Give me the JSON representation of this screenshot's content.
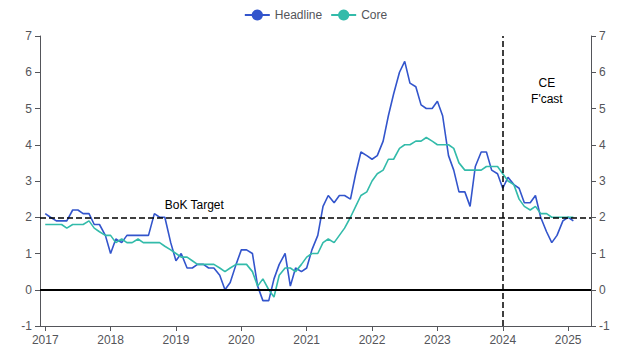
{
  "chart_data": {
    "type": "line",
    "x": [
      2017.0,
      2017.08,
      2017.17,
      2017.25,
      2017.33,
      2017.42,
      2017.5,
      2017.58,
      2017.67,
      2017.75,
      2017.83,
      2017.92,
      2018.0,
      2018.08,
      2018.17,
      2018.25,
      2018.33,
      2018.42,
      2018.5,
      2018.58,
      2018.67,
      2018.75,
      2018.83,
      2018.92,
      2019.0,
      2019.08,
      2019.17,
      2019.25,
      2019.33,
      2019.42,
      2019.5,
      2019.58,
      2019.67,
      2019.75,
      2019.83,
      2019.92,
      2020.0,
      2020.08,
      2020.17,
      2020.25,
      2020.33,
      2020.42,
      2020.5,
      2020.58,
      2020.67,
      2020.75,
      2020.83,
      2020.92,
      2021.0,
      2021.08,
      2021.17,
      2021.25,
      2021.33,
      2021.42,
      2021.5,
      2021.58,
      2021.67,
      2021.75,
      2021.83,
      2021.92,
      2022.0,
      2022.08,
      2022.17,
      2022.25,
      2022.33,
      2022.42,
      2022.5,
      2022.58,
      2022.67,
      2022.75,
      2022.83,
      2022.92,
      2023.0,
      2023.08,
      2023.17,
      2023.25,
      2023.33,
      2023.42,
      2023.5,
      2023.58,
      2023.67,
      2023.75,
      2023.83,
      2023.92,
      2024.0,
      2024.08,
      2024.17,
      2024.25,
      2024.33,
      2024.42,
      2024.5,
      2024.58,
      2024.67,
      2024.75,
      2024.83,
      2024.92,
      2025.0,
      2025.08
    ],
    "series": [
      {
        "name": "Headline",
        "color": "#3355cc",
        "values": [
          2.1,
          2.0,
          1.9,
          1.9,
          1.9,
          2.2,
          2.2,
          2.1,
          2.1,
          1.8,
          1.8,
          1.5,
          1.0,
          1.4,
          1.3,
          1.5,
          1.5,
          1.5,
          1.5,
          1.5,
          2.1,
          2.0,
          2.0,
          1.3,
          0.8,
          1.0,
          0.6,
          0.6,
          0.7,
          0.7,
          0.6,
          0.6,
          0.4,
          0.0,
          0.2,
          0.7,
          1.1,
          1.1,
          1.0,
          0.1,
          -0.3,
          -0.3,
          0.3,
          0.7,
          1.0,
          0.1,
          0.6,
          0.5,
          0.6,
          1.1,
          1.5,
          2.3,
          2.6,
          2.4,
          2.6,
          2.6,
          2.5,
          3.2,
          3.8,
          3.7,
          3.6,
          3.7,
          4.1,
          4.8,
          5.4,
          6.0,
          6.3,
          5.7,
          5.6,
          5.1,
          5.0,
          5.0,
          5.2,
          4.8,
          3.7,
          3.3,
          2.7,
          2.7,
          2.3,
          3.4,
          3.8,
          3.8,
          3.3,
          3.2,
          2.8,
          3.1,
          2.9,
          2.8,
          2.4,
          2.4,
          2.6,
          2.0,
          1.6,
          1.3,
          1.5,
          1.9,
          2.0,
          1.9
        ]
      },
      {
        "name": "Core",
        "color": "#33bbaa",
        "values": [
          1.8,
          1.8,
          1.8,
          1.8,
          1.7,
          1.8,
          1.8,
          1.8,
          1.9,
          1.7,
          1.6,
          1.5,
          1.5,
          1.3,
          1.4,
          1.3,
          1.3,
          1.4,
          1.3,
          1.3,
          1.3,
          1.3,
          1.2,
          1.1,
          1.0,
          0.9,
          0.9,
          0.8,
          0.7,
          0.7,
          0.7,
          0.7,
          0.6,
          0.5,
          0.6,
          0.7,
          0.7,
          0.7,
          0.5,
          0.1,
          0.3,
          0.0,
          -0.2,
          0.4,
          0.6,
          0.6,
          0.5,
          0.7,
          0.9,
          1.0,
          1.0,
          1.3,
          1.4,
          1.3,
          1.5,
          1.7,
          2.0,
          2.3,
          2.6,
          2.7,
          3.0,
          3.2,
          3.3,
          3.6,
          3.6,
          3.9,
          4.0,
          4.0,
          4.1,
          4.1,
          4.2,
          4.1,
          4.0,
          4.0,
          4.0,
          3.9,
          3.5,
          3.3,
          3.3,
          3.3,
          3.3,
          3.4,
          3.4,
          3.4,
          3.2,
          3.0,
          2.9,
          2.5,
          2.3,
          2.2,
          2.3,
          2.1,
          2.1,
          2.0,
          2.0,
          2.0,
          2.0,
          2.0
        ]
      }
    ],
    "xlim": [
      2016.92,
      2025.35
    ],
    "xticks": [
      2017,
      2018,
      2019,
      2020,
      2021,
      2022,
      2023,
      2024,
      2025
    ],
    "ylim": [
      -1,
      7
    ],
    "yticks": [
      -1,
      0,
      1,
      2,
      3,
      4,
      5,
      6,
      7
    ],
    "y2lim": [
      -1,
      7
    ],
    "y2ticks": [
      -1,
      0,
      1,
      2,
      3,
      4,
      5,
      6,
      7
    ],
    "grid": false,
    "legend": "top",
    "reference_lines": [
      {
        "axis": "y",
        "value": 2.0,
        "line_style": "dashed",
        "color": "black",
        "label": "BoK Target"
      },
      {
        "axis": "y",
        "value": 0.0,
        "line_style": "solid",
        "color": "black"
      },
      {
        "axis": "x",
        "value": 2024.0,
        "line_style": "dashed",
        "color": "black",
        "label": "CE\nF'cast"
      }
    ]
  }
}
